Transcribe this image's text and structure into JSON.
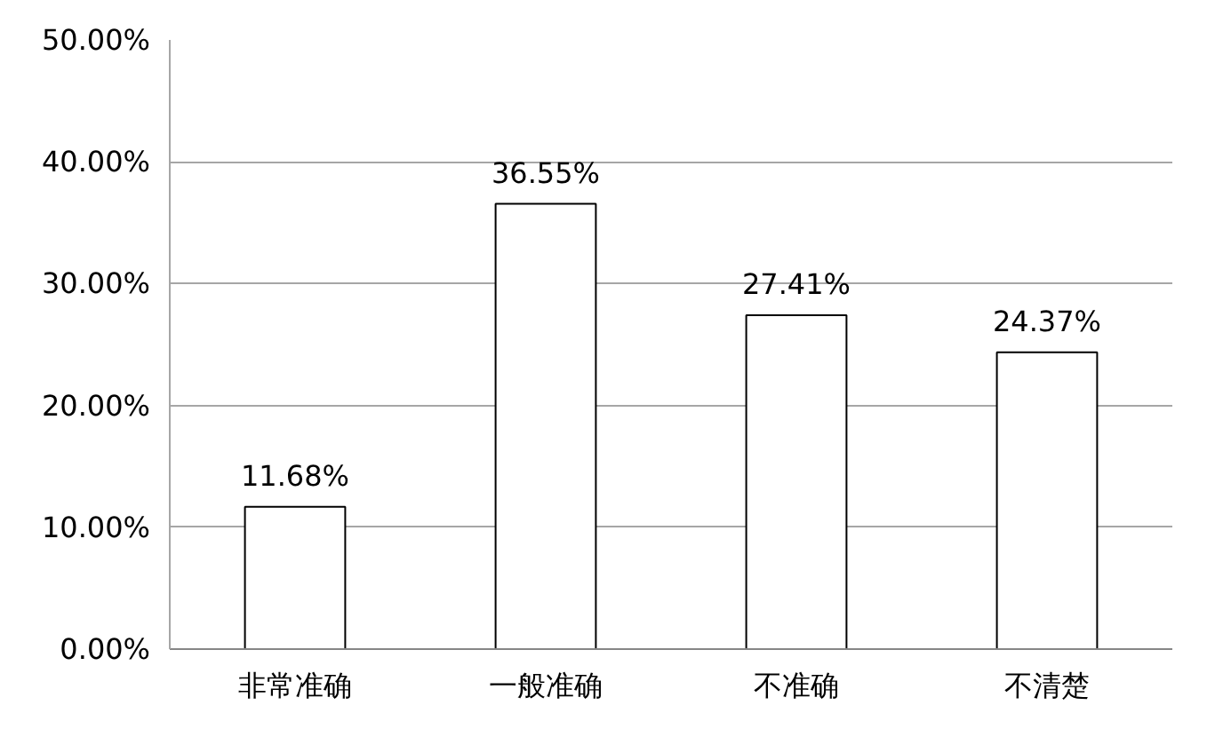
{
  "chart_data": {
    "type": "bar",
    "categories": [
      "非常准确",
      "一般准确",
      "不准确",
      "不清楚"
    ],
    "values": [
      11.68,
      36.55,
      27.41,
      24.37
    ],
    "value_labels": [
      "11.68%",
      "36.55%",
      "27.41%",
      "24.37%"
    ],
    "color": "#ffffff",
    "ylim": [
      0,
      50
    ],
    "yticks": [
      {
        "value": 0,
        "label": "0.00%"
      },
      {
        "value": 10,
        "label": "10.00%"
      },
      {
        "value": 20,
        "label": "20.00%"
      },
      {
        "value": 30,
        "label": "30.00%"
      },
      {
        "value": 40,
        "label": "40.00%"
      },
      {
        "value": 50,
        "label": "50.00%"
      }
    ],
    "grid": "y"
  }
}
